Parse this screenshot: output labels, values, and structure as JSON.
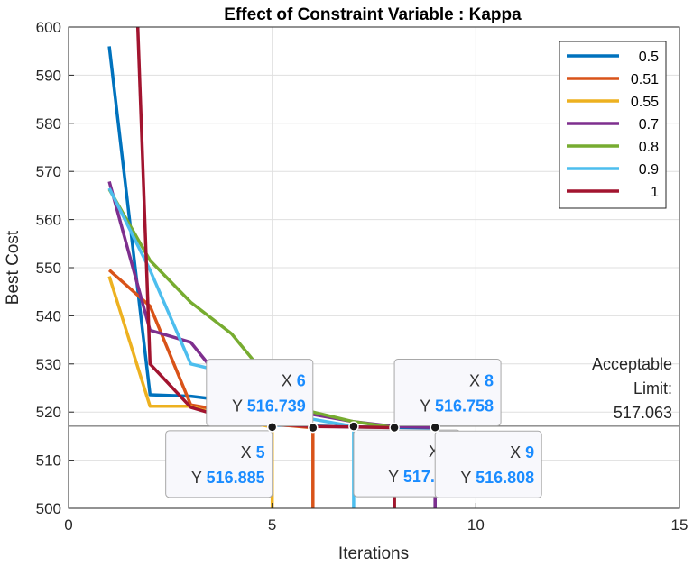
{
  "chart_data": {
    "type": "line",
    "title": "Effect of Constraint Variable : Kappa",
    "xlabel": "Iterations",
    "ylabel": "Best Cost",
    "xlim": [
      0,
      15
    ],
    "ylim": [
      500,
      600
    ],
    "xticks": [
      0,
      5,
      10,
      15
    ],
    "yticks": [
      500,
      510,
      520,
      530,
      540,
      550,
      560,
      570,
      580,
      590,
      600
    ],
    "xtick_labels": [
      "0",
      "5",
      "10",
      "15"
    ],
    "ytick_labels": [
      "500",
      "510",
      "520",
      "530",
      "540",
      "550",
      "560",
      "570",
      "580",
      "590",
      "600"
    ],
    "grid": true,
    "legend_position": "top-right",
    "series": [
      {
        "name": "0.5",
        "color": "#0072BD",
        "x": [
          1,
          2,
          3,
          4,
          5,
          6,
          7,
          8,
          9,
          9
        ],
        "y": [
          596,
          523.6,
          523.3,
          522.3,
          517.3,
          517.1,
          516.9,
          516.8,
          516.7,
          500
        ]
      },
      {
        "name": "0.51",
        "color": "#D95319",
        "x": [
          1,
          2,
          3,
          4,
          5,
          6,
          6
        ],
        "y": [
          549.5,
          542,
          521.5,
          520,
          517.5,
          516.739,
          500
        ]
      },
      {
        "name": "0.55",
        "color": "#EDB120",
        "x": [
          1,
          2,
          3,
          4,
          5,
          5
        ],
        "y": [
          548.2,
          521.2,
          521.2,
          518.5,
          516.885,
          500
        ]
      },
      {
        "name": "0.7",
        "color": "#7E2F8E",
        "x": [
          1,
          2,
          3,
          4,
          5,
          6,
          7,
          8,
          9,
          9
        ],
        "y": [
          567.9,
          537,
          534.5,
          524,
          521.5,
          519.5,
          518,
          517,
          516.808,
          500
        ]
      },
      {
        "name": "0.8",
        "color": "#77AC30",
        "x": [
          1,
          2,
          3,
          4,
          5,
          6,
          7,
          8,
          8
        ],
        "y": [
          566.3,
          551.5,
          542.8,
          536.3,
          526,
          520,
          518,
          516.758,
          500
        ]
      },
      {
        "name": "0.9",
        "color": "#4DBEEE",
        "x": [
          1,
          2,
          3,
          4,
          5,
          6,
          7,
          7
        ],
        "y": [
          566.5,
          549.5,
          530,
          528,
          522,
          518.5,
          517.01,
          500
        ]
      },
      {
        "name": "1",
        "color": "#A2142F",
        "x": [
          1.7,
          2,
          3,
          4,
          5,
          6,
          7,
          8,
          8
        ],
        "y": [
          600,
          530,
          521,
          518.5,
          517.5,
          517,
          516.9,
          516.758,
          500
        ]
      }
    ],
    "reference_line": {
      "y": 517.063,
      "label_lines": [
        "Acceptable",
        "Limit:",
        "517.063"
      ]
    },
    "datatips": [
      {
        "x": 6,
        "y": 516.739,
        "x_label": "X",
        "y_label": "Y",
        "x_text": "6",
        "y_text": "516.739",
        "placement": "above-left"
      },
      {
        "x": 5,
        "y": 516.885,
        "x_label": "X",
        "y_label": "Y",
        "x_text": "5",
        "y_text": "516.885",
        "placement": "below-left"
      },
      {
        "x": 7,
        "y": 517.01,
        "x_label": "X",
        "y_label": "Y",
        "x_text": "7",
        "y_text": "517.01",
        "placement": "below-right"
      },
      {
        "x": 8,
        "y": 516.758,
        "x_label": "X",
        "y_label": "Y",
        "x_text": "8",
        "y_text": "516.758",
        "placement": "above-right"
      },
      {
        "x": 9,
        "y": 516.808,
        "x_label": "X",
        "y_label": "Y",
        "x_text": "9",
        "y_text": "516.808",
        "placement": "below-right"
      }
    ]
  }
}
